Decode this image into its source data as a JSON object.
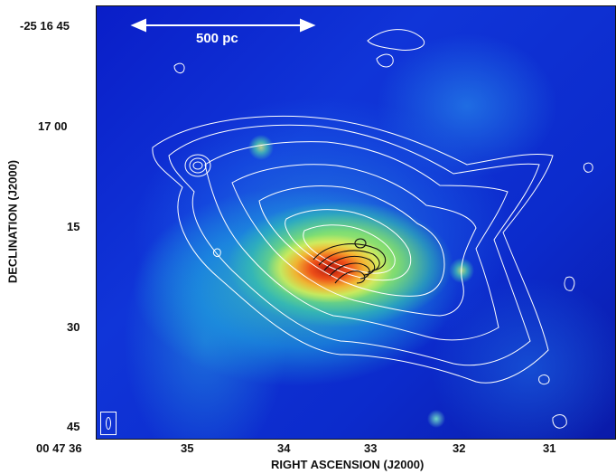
{
  "figure": {
    "scalebar_label": "500 pc",
    "x_axis_title": "RIGHT ASCENSION (J2000)",
    "y_axis_title": "DECLINATION (J2000)",
    "x_ticks": [
      "00 47 36",
      "35",
      "34",
      "33",
      "32",
      "31"
    ],
    "y_ticks": [
      "-25 16 45",
      "17 00",
      "15",
      "30",
      "45"
    ],
    "colors": {
      "background_low": "#0a1ec8",
      "peak": "#d81e10",
      "contour_outer": "#ffffff",
      "contour_inner": "#111111"
    }
  }
}
